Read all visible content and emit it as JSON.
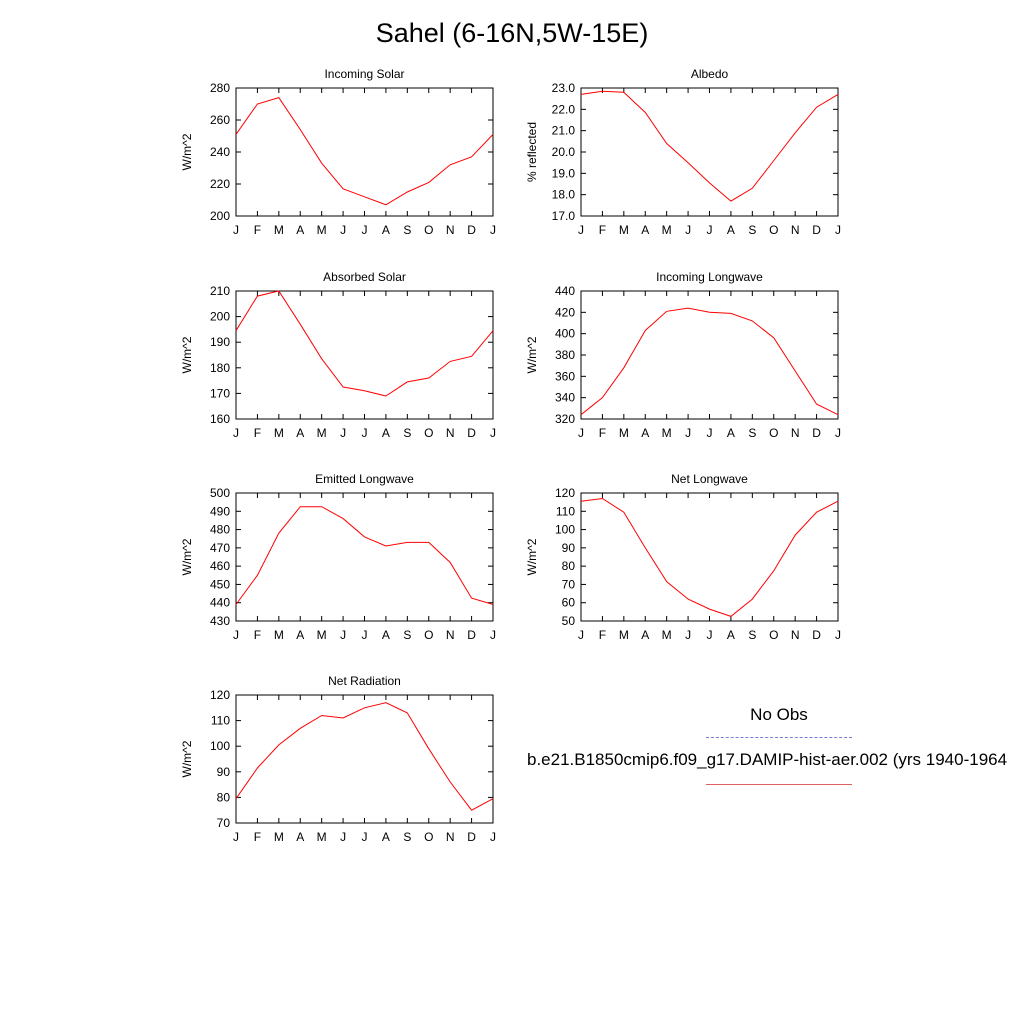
{
  "title": "Sahel (6-16N,5W-15E)",
  "line_color": "#ff0000",
  "legend": {
    "obs_label": "No Obs",
    "obs_line_color": "#7b7bd6",
    "model_label": "b.e21.B1850cmip6.f09_g17.DAMIP-hist-aer.002 (yrs 1940-1964",
    "model_line_color": "#e06060"
  },
  "chart_data": [
    {
      "type": "line",
      "title": "Incoming Solar",
      "ylabel": "W/m^2",
      "categories": [
        "J",
        "F",
        "M",
        "A",
        "M",
        "J",
        "J",
        "A",
        "S",
        "O",
        "N",
        "D",
        "J"
      ],
      "ylim": [
        200,
        280
      ],
      "yticks": [
        "200",
        "220",
        "240",
        "260",
        "280"
      ],
      "values": [
        251,
        270,
        274,
        254,
        233,
        217,
        212,
        207,
        215,
        221,
        232,
        237,
        251
      ]
    },
    {
      "type": "line",
      "title": "Albedo",
      "ylabel": "% reflected",
      "categories": [
        "J",
        "F",
        "M",
        "A",
        "M",
        "J",
        "J",
        "A",
        "S",
        "O",
        "N",
        "D",
        "J"
      ],
      "ylim": [
        17.0,
        23.0
      ],
      "yticks": [
        "17.0",
        "18.0",
        "19.0",
        "20.0",
        "21.0",
        "22.0",
        "23.0"
      ],
      "values": [
        22.7,
        22.85,
        22.8,
        21.85,
        20.4,
        19.5,
        18.55,
        17.7,
        18.3,
        19.6,
        20.9,
        22.1,
        22.7
      ]
    },
    {
      "type": "line",
      "title": "Absorbed Solar",
      "ylabel": "W/m^2",
      "categories": [
        "J",
        "F",
        "M",
        "A",
        "M",
        "J",
        "J",
        "A",
        "S",
        "O",
        "N",
        "D",
        "J"
      ],
      "ylim": [
        160,
        210
      ],
      "yticks": [
        "160",
        "170",
        "180",
        "190",
        "200",
        "210"
      ],
      "values": [
        194.5,
        208,
        210,
        197,
        183.5,
        172.5,
        171,
        169,
        174.5,
        176,
        182.5,
        184.5,
        194.5
      ]
    },
    {
      "type": "line",
      "title": "Incoming Longwave",
      "ylabel": "W/m^2",
      "categories": [
        "J",
        "F",
        "M",
        "A",
        "M",
        "J",
        "J",
        "A",
        "S",
        "O",
        "N",
        "D",
        "J"
      ],
      "ylim": [
        320,
        440
      ],
      "yticks": [
        "320",
        "340",
        "360",
        "380",
        "400",
        "420",
        "440"
      ],
      "values": [
        324,
        340,
        368,
        403,
        421,
        424,
        420,
        419,
        412,
        396,
        365,
        334,
        324
      ]
    },
    {
      "type": "line",
      "title": "Emitted Longwave",
      "ylabel": "W/m^2",
      "categories": [
        "J",
        "F",
        "M",
        "A",
        "M",
        "J",
        "J",
        "A",
        "S",
        "O",
        "N",
        "D",
        "J"
      ],
      "ylim": [
        430,
        500
      ],
      "yticks": [
        "430",
        "440",
        "450",
        "460",
        "470",
        "480",
        "490",
        "500"
      ],
      "values": [
        439,
        455,
        478,
        492.5,
        492.5,
        486,
        476,
        471,
        473,
        473,
        462,
        442.5,
        439
      ]
    },
    {
      "type": "line",
      "title": "Net Longwave",
      "ylabel": "W/m^2",
      "categories": [
        "J",
        "F",
        "M",
        "A",
        "M",
        "J",
        "J",
        "A",
        "S",
        "O",
        "N",
        "D",
        "J"
      ],
      "ylim": [
        50,
        120
      ],
      "yticks": [
        "50",
        "60",
        "70",
        "80",
        "90",
        "100",
        "110",
        "120"
      ],
      "values": [
        115.5,
        117,
        109.5,
        90,
        71.5,
        62,
        56.5,
        52.5,
        62,
        77.5,
        97,
        109.5,
        115.5
      ]
    },
    {
      "type": "line",
      "title": "Net Radiation",
      "ylabel": "W/m^2",
      "categories": [
        "J",
        "F",
        "M",
        "A",
        "M",
        "J",
        "J",
        "A",
        "S",
        "O",
        "N",
        "D",
        "J"
      ],
      "ylim": [
        70,
        120
      ],
      "yticks": [
        "70",
        "80",
        "90",
        "100",
        "110",
        "120"
      ],
      "values": [
        79.5,
        91.5,
        100.5,
        107,
        112,
        111,
        115,
        117,
        113,
        99,
        86,
        75,
        79.5
      ]
    }
  ]
}
